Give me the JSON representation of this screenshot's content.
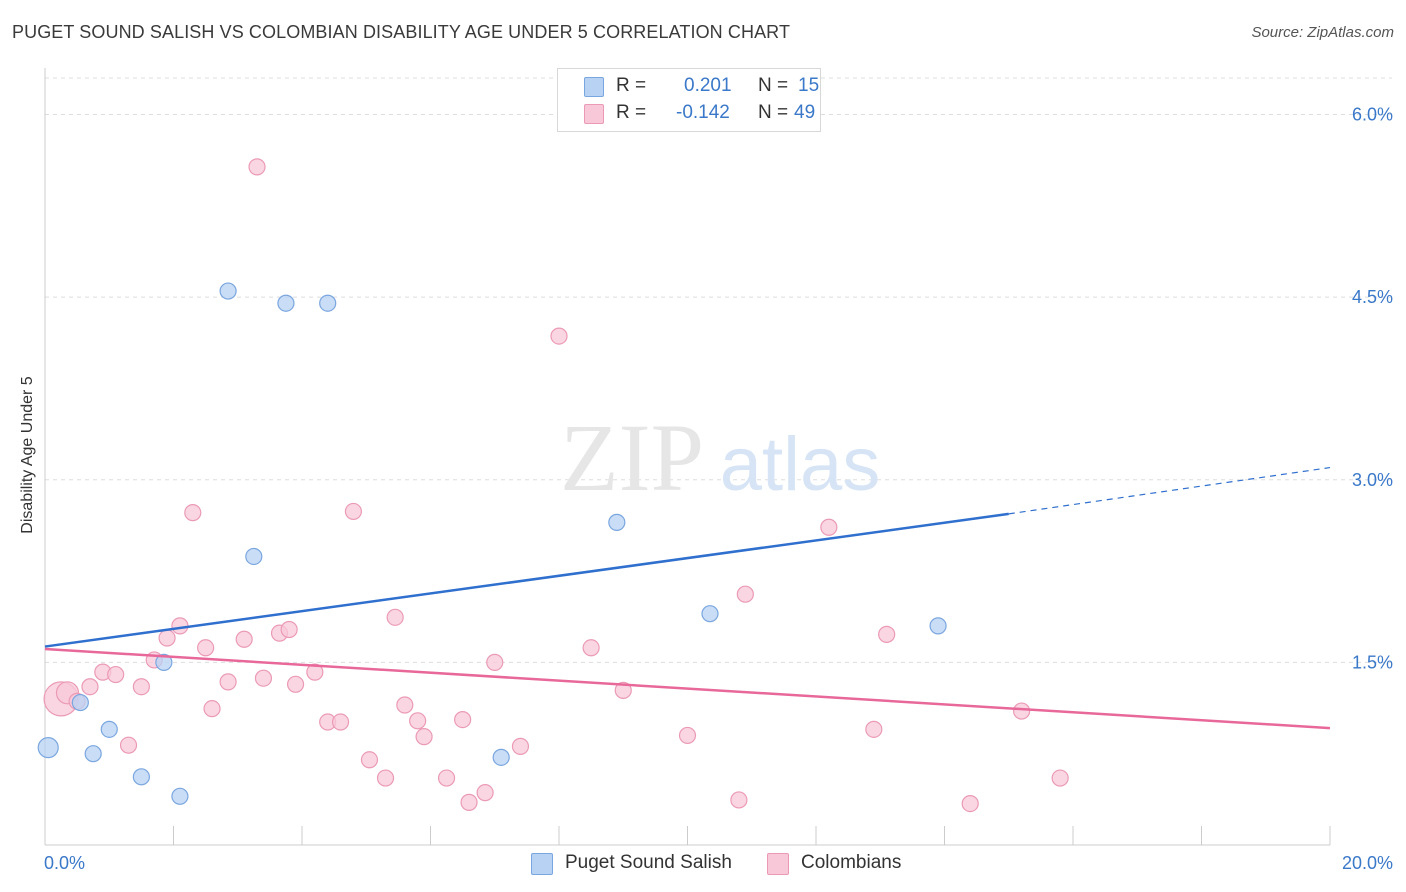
{
  "title": "PUGET SOUND SALISH VS COLOMBIAN DISABILITY AGE UNDER 5 CORRELATION CHART",
  "source": "Source: ZipAtlas.com",
  "watermark": {
    "zip": "ZIP",
    "atlas": "atlas"
  },
  "legend_top": [
    {
      "r_label": "R =",
      "r_value": "0.201",
      "n_label": "N =",
      "n_value": "15"
    },
    {
      "r_label": "R =",
      "r_value": "-0.142",
      "n_label": "N =",
      "n_value": "49"
    }
  ],
  "legend_bottom": [
    "Puget Sound Salish",
    "Colombians"
  ],
  "colors": {
    "blue_fill": "#b7d2f3",
    "blue_stroke": "#7aa6df",
    "blue_line": "#2f6fce",
    "pink_fill": "#f8c8d8",
    "pink_stroke": "#eb9ab6",
    "pink_line": "#e8689a",
    "axis_text": "#3a78c9",
    "grid": "#dddddd"
  },
  "chart_data": {
    "type": "scatter",
    "title": "PUGET SOUND SALISH VS COLOMBIAN DISABILITY AGE UNDER 5 CORRELATION CHART",
    "xlabel": "",
    "ylabel": "Disability Age Under 5",
    "xlim": [
      0,
      20
    ],
    "ylim": [
      0,
      6.3
    ],
    "x_tick_labels": [
      "0.0%",
      "20.0%"
    ],
    "y_ticks": [
      1.5,
      3.0,
      4.5,
      6.0
    ],
    "y_tick_labels": [
      "1.5%",
      "3.0%",
      "4.5%",
      "6.0%"
    ],
    "grid": true,
    "series": [
      {
        "name": "Puget Sound Salish",
        "points": [
          [
            0.05,
            0.8
          ],
          [
            0.55,
            1.17
          ],
          [
            0.75,
            0.75
          ],
          [
            1.0,
            0.95
          ],
          [
            1.5,
            0.56
          ],
          [
            1.85,
            1.5
          ],
          [
            2.1,
            0.4
          ],
          [
            2.85,
            4.55
          ],
          [
            3.25,
            2.37
          ],
          [
            3.75,
            4.45
          ],
          [
            4.4,
            4.45
          ],
          [
            7.1,
            0.72
          ],
          [
            8.9,
            2.65
          ],
          [
            10.35,
            1.9
          ],
          [
            13.9,
            1.8
          ]
        ],
        "trend": {
          "x_start": 0,
          "y_start": 1.63,
          "x_solid_end": 15.0,
          "y_solid_end": 2.72,
          "x_end": 20.0,
          "y_end": 3.1
        }
      },
      {
        "name": "Colombians",
        "points": [
          [
            0.25,
            1.2
          ],
          [
            0.35,
            1.25
          ],
          [
            0.5,
            1.18
          ],
          [
            0.7,
            1.3
          ],
          [
            0.9,
            1.42
          ],
          [
            1.1,
            1.4
          ],
          [
            1.3,
            0.82
          ],
          [
            1.5,
            1.3
          ],
          [
            1.7,
            1.52
          ],
          [
            1.9,
            1.7
          ],
          [
            2.1,
            1.8
          ],
          [
            2.3,
            2.73
          ],
          [
            2.5,
            1.62
          ],
          [
            2.6,
            1.12
          ],
          [
            2.85,
            1.34
          ],
          [
            3.1,
            1.69
          ],
          [
            3.3,
            5.57
          ],
          [
            3.4,
            1.37
          ],
          [
            3.65,
            1.74
          ],
          [
            3.8,
            1.77
          ],
          [
            3.9,
            1.32
          ],
          [
            4.2,
            1.42
          ],
          [
            4.4,
            1.01
          ],
          [
            4.6,
            1.01
          ],
          [
            4.8,
            2.74
          ],
          [
            5.05,
            0.7
          ],
          [
            5.3,
            0.55
          ],
          [
            5.45,
            1.87
          ],
          [
            5.6,
            1.15
          ],
          [
            5.8,
            1.02
          ],
          [
            5.9,
            0.89
          ],
          [
            6.25,
            0.55
          ],
          [
            6.5,
            1.03
          ],
          [
            6.6,
            0.35
          ],
          [
            6.85,
            0.43
          ],
          [
            7.0,
            1.5
          ],
          [
            7.4,
            0.81
          ],
          [
            8.0,
            4.18
          ],
          [
            8.5,
            1.62
          ],
          [
            9.0,
            1.27
          ],
          [
            10.0,
            0.9
          ],
          [
            10.8,
            0.37
          ],
          [
            10.9,
            2.06
          ],
          [
            12.2,
            2.61
          ],
          [
            12.9,
            0.95
          ],
          [
            13.1,
            1.73
          ],
          [
            14.4,
            0.34
          ],
          [
            15.2,
            1.1
          ],
          [
            15.8,
            0.55
          ]
        ],
        "trend": {
          "x_start": 0,
          "y_start": 1.61,
          "x_end": 20.0,
          "y_end": 0.96
        }
      }
    ]
  }
}
